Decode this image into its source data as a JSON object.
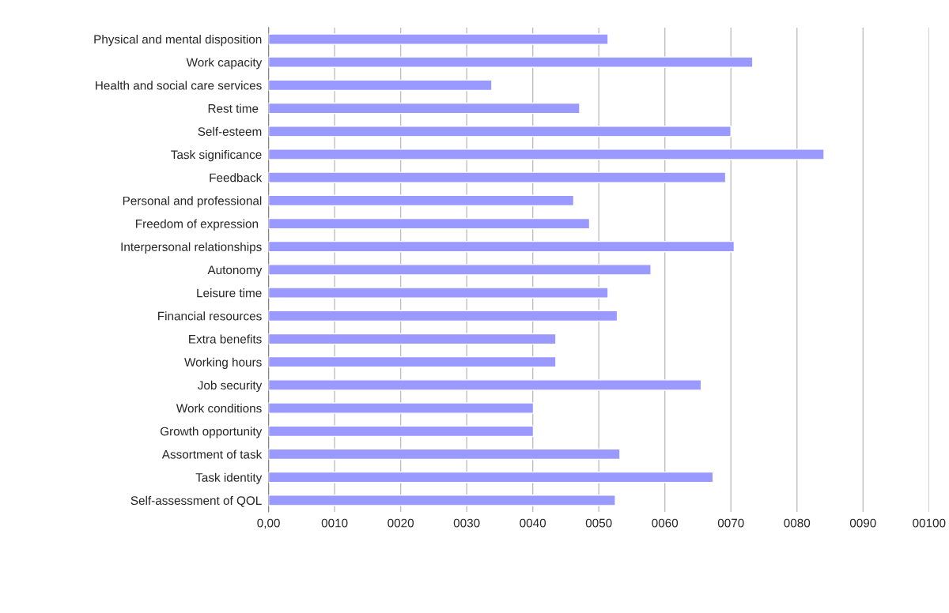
{
  "chart_data": {
    "type": "bar",
    "orientation": "horizontal",
    "color": "#9999ff",
    "categories": [
      "Physical and mental disposition",
      "Work capacity",
      "Health and social care services",
      "Rest time ",
      "Self-esteem",
      "Task significance",
      "Feedback",
      "Personal and professional",
      "Freedom of expression ",
      "Interpersonal relationships",
      "Autonomy",
      "Leisure time",
      "Financial resources",
      "Extra benefits",
      "Working hours",
      "Job security",
      "Work conditions",
      "Growth opportunity",
      "Assortment of task",
      "Task identity",
      "Self-assessment of QOL"
    ],
    "values": [
      51.4,
      73.3,
      33.8,
      47.1,
      70.0,
      84.1,
      69.2,
      46.2,
      48.6,
      70.5,
      57.9,
      51.4,
      52.8,
      43.5,
      43.5,
      65.5,
      40.1,
      40.1,
      53.2,
      67.3,
      52.5
    ],
    "xlim": [
      0,
      100
    ],
    "xticks": [
      {
        "value": 0,
        "label": "0,00"
      },
      {
        "value": 10,
        "label": "0010"
      },
      {
        "value": 20,
        "label": "0020"
      },
      {
        "value": 30,
        "label": "0030"
      },
      {
        "value": 40,
        "label": "0040"
      },
      {
        "value": 50,
        "label": "0050"
      },
      {
        "value": 60,
        "label": "0060"
      },
      {
        "value": 70,
        "label": "0070"
      },
      {
        "value": 80,
        "label": "0080"
      },
      {
        "value": 90,
        "label": "0090"
      },
      {
        "value": 100,
        "label": "00100"
      }
    ],
    "grid": "x",
    "legend": false
  }
}
